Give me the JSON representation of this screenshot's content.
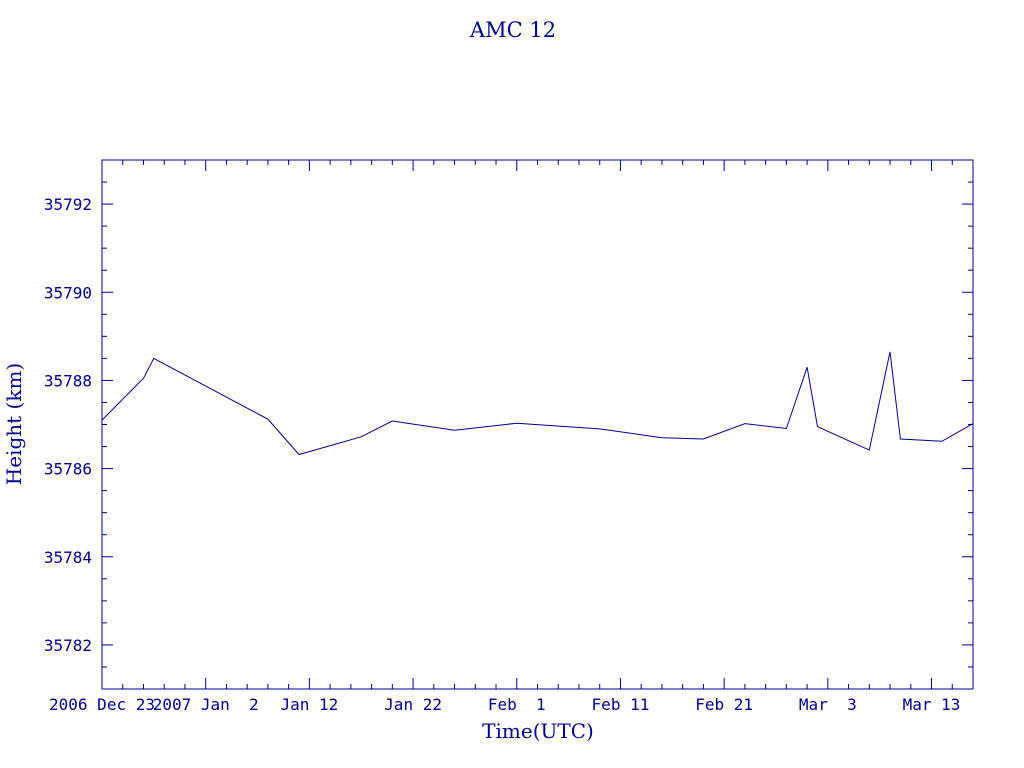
{
  "chart_data": {
    "type": "line",
    "title": "AMC 12",
    "xlabel": "Time(UTC)",
    "ylabel": "Height (km)",
    "ylim": [
      35781,
      35793
    ],
    "y_ticks": [
      35782,
      35784,
      35786,
      35788,
      35790,
      35792
    ],
    "xlim": [
      "2006-12-23",
      "2007-03-17"
    ],
    "x_ticks": [
      {
        "date": "2006-12-23",
        "label": "2006 Dec 23"
      },
      {
        "date": "2007-01-02",
        "label": "2007 Jan  2"
      },
      {
        "date": "2007-01-12",
        "label": "Jan 12"
      },
      {
        "date": "2007-01-22",
        "label": "Jan 22"
      },
      {
        "date": "2007-02-01",
        "label": "Feb  1"
      },
      {
        "date": "2007-02-11",
        "label": "Feb 11"
      },
      {
        "date": "2007-02-21",
        "label": "Feb 21"
      },
      {
        "date": "2007-03-03",
        "label": "Mar  3"
      },
      {
        "date": "2007-03-13",
        "label": "Mar 13"
      }
    ],
    "grid": false,
    "series": [
      {
        "x": [
          "2006-12-23",
          "2006-12-27",
          "2006-12-28",
          "2007-01-08",
          "2007-01-11",
          "2007-01-17",
          "2007-01-20",
          "2007-01-26",
          "2007-02-01",
          "2007-02-09",
          "2007-02-15",
          "2007-02-19",
          "2007-02-23",
          "2007-02-27",
          "2007-03-01",
          "2007-03-02",
          "2007-03-07",
          "2007-03-09",
          "2007-03-10",
          "2007-03-14",
          "2007-03-17"
        ],
        "y": [
          35787.1,
          35788.05,
          35788.5,
          35787.12,
          35786.32,
          35786.72,
          35787.08,
          35786.87,
          35787.03,
          35786.9,
          35786.7,
          35786.67,
          35787.02,
          35786.91,
          35788.3,
          35786.95,
          35786.42,
          35788.65,
          35786.67,
          35786.62,
          35787.02
        ]
      }
    ],
    "colors": {
      "foreground": "#00008b",
      "background": "#ffffff"
    }
  }
}
